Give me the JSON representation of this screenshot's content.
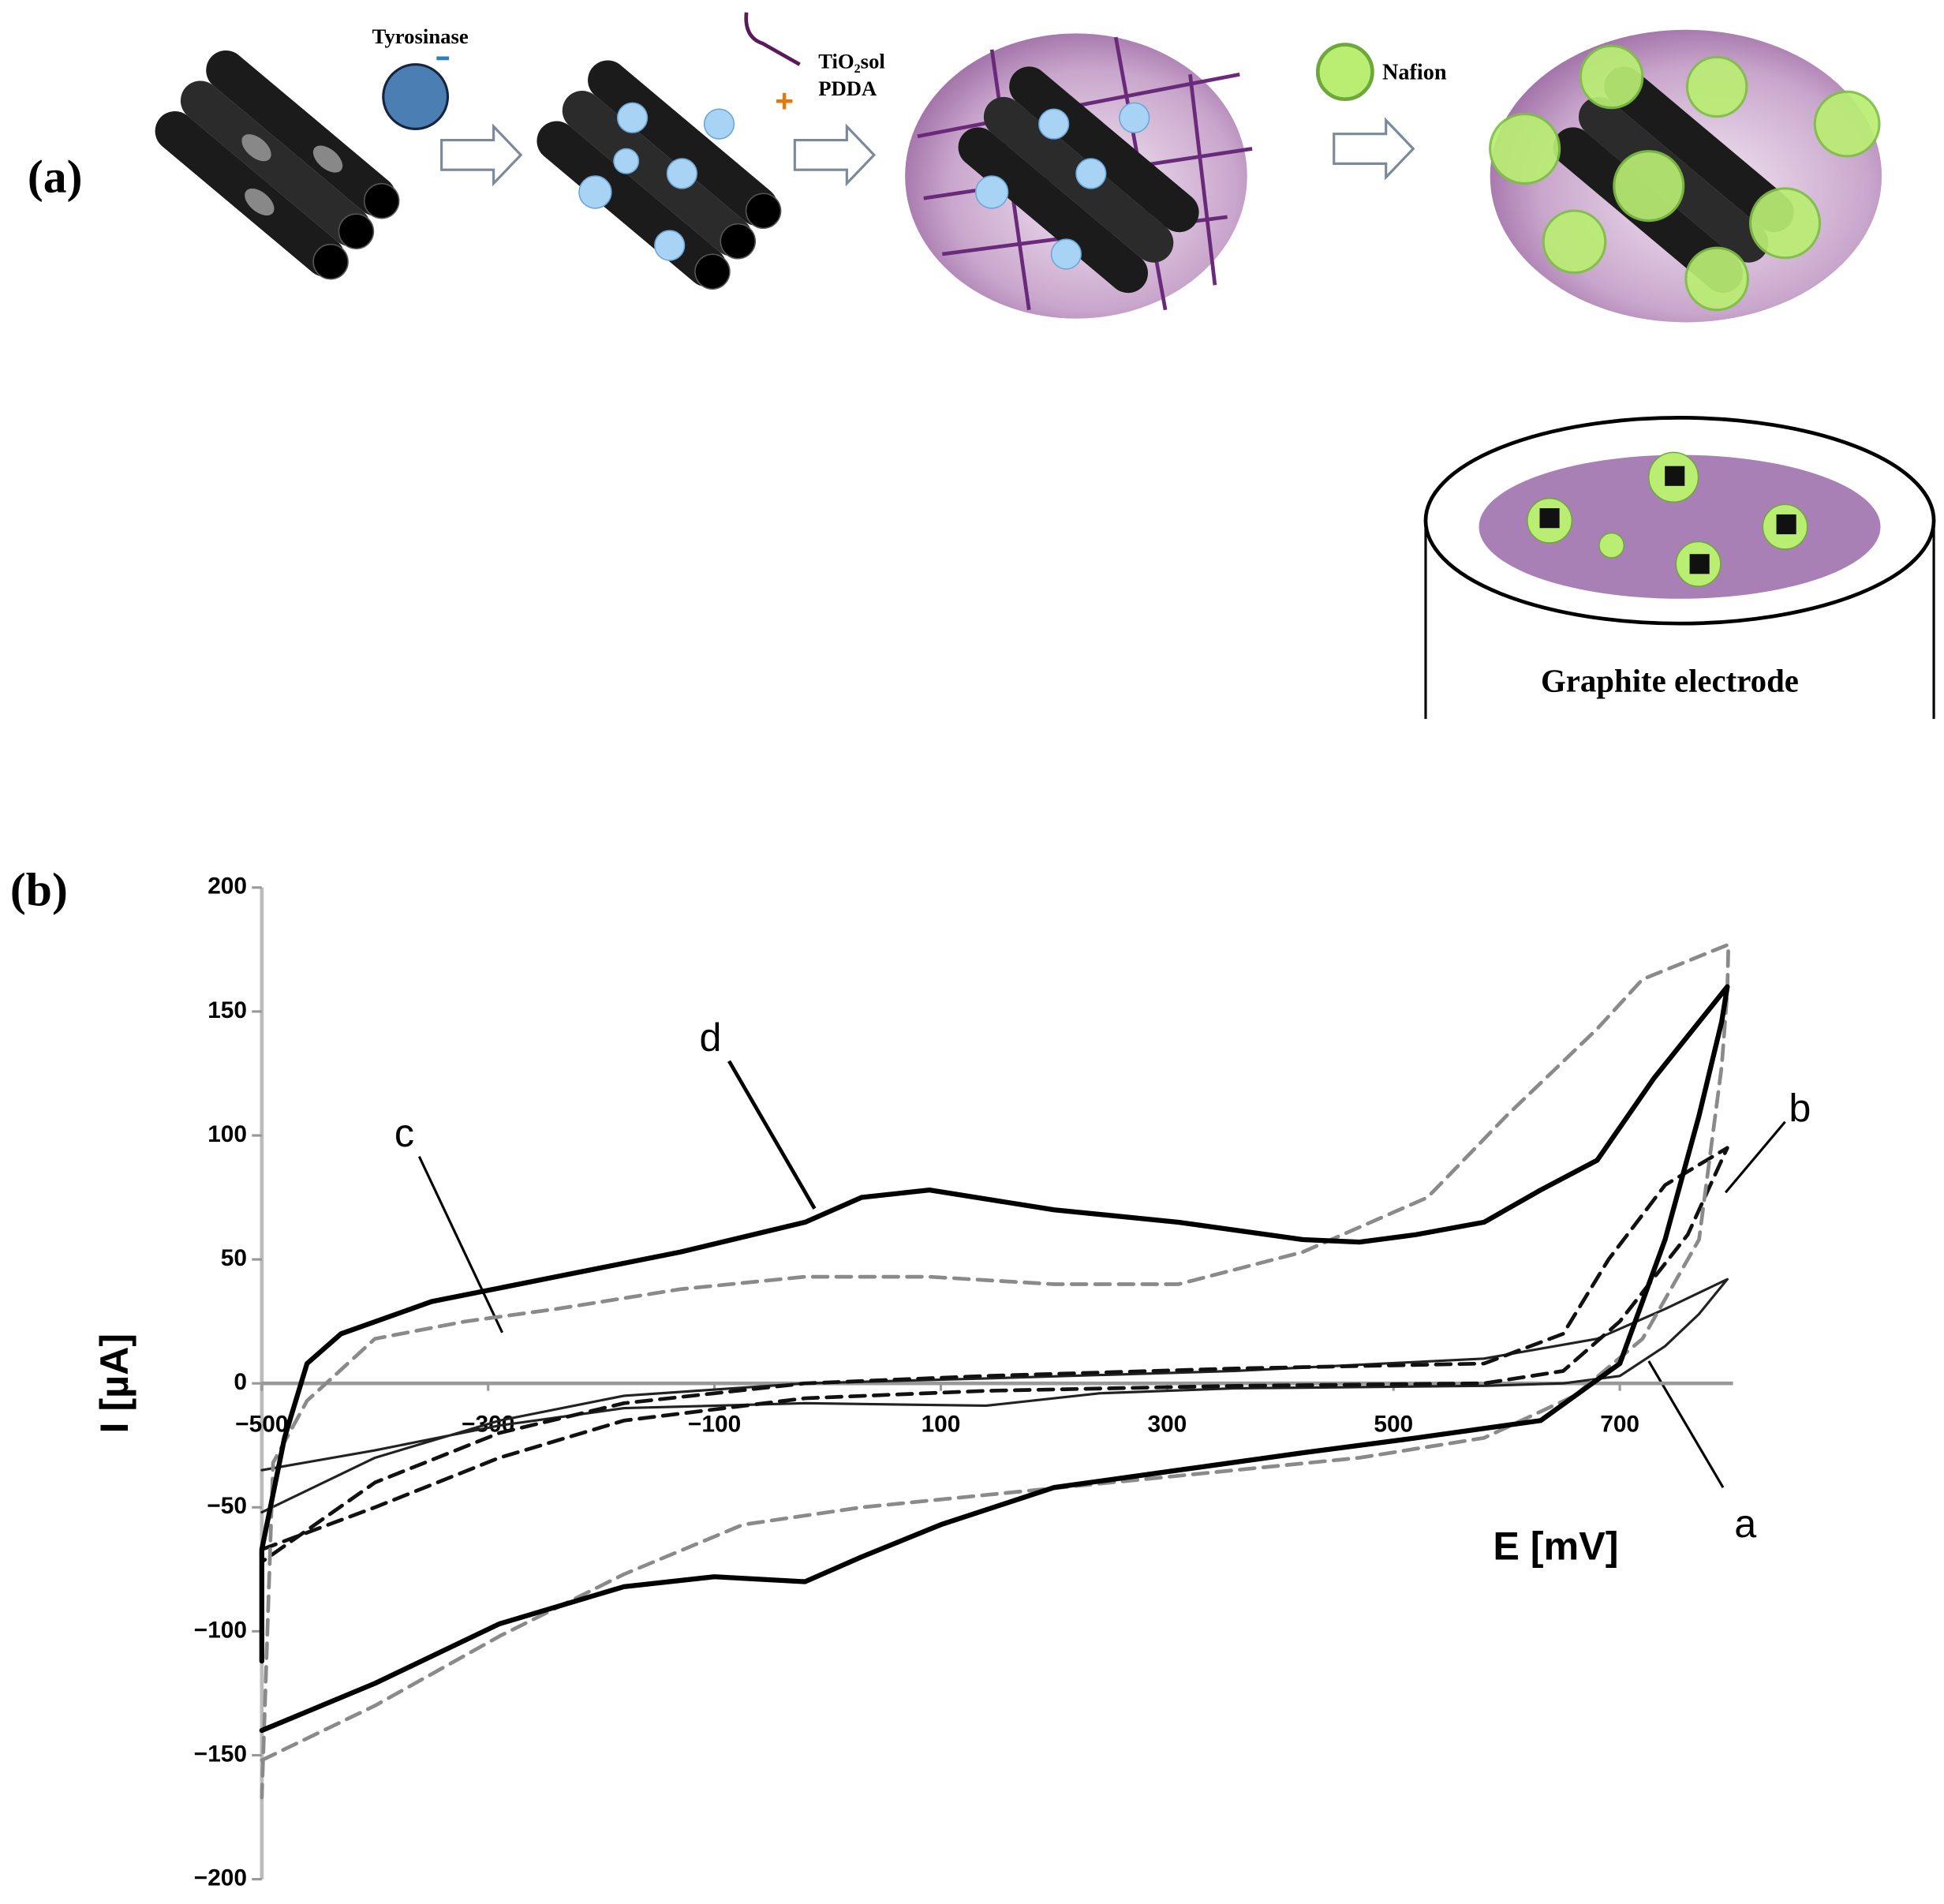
{
  "panels": [
    "(a)",
    "(b)"
  ],
  "diagram": {
    "tyrosinase": "Tyrosinase",
    "tio2": "TiO₂sol",
    "pdda": "PDDA",
    "nafion": "Nafion",
    "electrode": "Graphite electrode"
  },
  "chart_data": {
    "type": "line",
    "xlabel": "E [mV]",
    "ylabel": "I [µA]",
    "xlim": [
      -500,
      800
    ],
    "ylim": [
      -200,
      200
    ],
    "xticks": [
      {
        "value": -500,
        "label": "−500"
      },
      {
        "value": -300,
        "label": "−300"
      },
      {
        "value": -100,
        "label": "−100"
      },
      100,
      300,
      500,
      700
    ],
    "yticks": [
      200,
      150,
      100,
      50,
      0,
      {
        "value": -50,
        "label": "−50"
      },
      {
        "value": -100,
        "label": "−100"
      },
      {
        "value": -150,
        "label": "−150"
      },
      {
        "value": -200,
        "label": "−200"
      }
    ],
    "grid": false,
    "series": [
      {
        "name": "a",
        "color": "#222222",
        "width": 2,
        "dash": false,
        "x": [
          -500,
          -400,
          -290,
          -180,
          -20,
          140,
          240,
          360,
          580,
          650,
          700,
          740,
          770,
          795,
          740,
          680,
          580,
          360,
          140,
          -20,
          -180,
          -290,
          -400,
          -500
        ],
        "values": [
          -35,
          -27,
          -17,
          -10,
          -8,
          -9,
          -4,
          -2,
          -1,
          0,
          3,
          15,
          28,
          42,
          30,
          18,
          10,
          5,
          2,
          0,
          -5,
          -15,
          -30,
          -52
        ]
      },
      {
        "name": "b",
        "color": "#111111",
        "width": 3,
        "dash": true,
        "x": [
          -500,
          -400,
          -290,
          -180,
          -20,
          140,
          360,
          580,
          650,
          700,
          760,
          795,
          740,
          690,
          650,
          580,
          360,
          140,
          -20,
          -180,
          -290,
          -400,
          -500
        ],
        "values": [
          -67,
          -50,
          -30,
          -15,
          -6,
          -3,
          -1,
          0,
          5,
          25,
          60,
          95,
          80,
          50,
          20,
          8,
          6,
          3,
          0,
          -8,
          -20,
          -40,
          -72
        ]
      },
      {
        "name": "c",
        "color": "#8a8a8a",
        "width": 3,
        "dash": true,
        "x": [
          -500,
          -400,
          -290,
          -180,
          -75,
          30,
          140,
          250,
          360,
          470,
          580,
          660,
          720,
          770,
          790,
          795,
          796,
          720,
          680,
          600,
          530,
          420,
          310,
          200,
          90,
          -20,
          -130,
          -240,
          -320,
          -400,
          -460,
          -490,
          -500
        ],
        "values": [
          -152,
          -130,
          -102,
          -77,
          -57,
          -50,
          -45,
          -40,
          -35,
          -30,
          -22,
          -5,
          18,
          58,
          128,
          158,
          177,
          163,
          143,
          108,
          75,
          53,
          40,
          40,
          43,
          43,
          38,
          30,
          25,
          18,
          -7,
          -32,
          -167
        ]
      },
      {
        "name": "d",
        "color": "#000000",
        "width": 4,
        "dash": false,
        "x": [
          -500,
          -400,
          -290,
          -180,
          -100,
          -20,
          30,
          100,
          200,
          310,
          420,
          520,
          630,
          700,
          740,
          770,
          790,
          795,
          730,
          680,
          630,
          580,
          520,
          470,
          420,
          310,
          200,
          90,
          30,
          -20,
          -130,
          -240,
          -350,
          -430,
          -460,
          -480,
          -500,
          -500
        ],
        "values": [
          -140,
          -121,
          -97,
          -82,
          -78,
          -80,
          -70,
          -57,
          -42,
          -35,
          -28,
          -22,
          -15,
          8,
          58,
          108,
          146,
          160,
          123,
          90,
          78,
          65,
          60,
          57,
          58,
          65,
          70,
          78,
          75,
          65,
          53,
          43,
          33,
          20,
          8,
          -22,
          -67,
          -112
        ]
      }
    ]
  }
}
